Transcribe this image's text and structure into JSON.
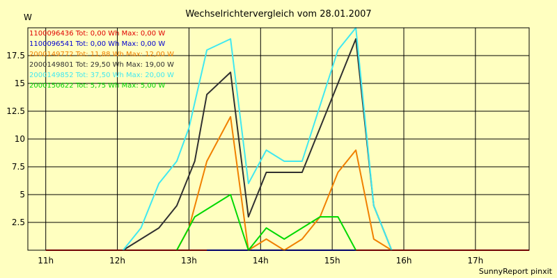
{
  "chart_data": {
    "type": "line",
    "title": "Wechselrichtervergleich vom 28.01.2007",
    "ylabel": "W",
    "xlabel": "",
    "footer": "SunnyReport pinxit",
    "xlim": [
      10.75,
      17.75
    ],
    "ylim": [
      0,
      20
    ],
    "x_ticks": [
      {
        "value": 11,
        "label": "11h"
      },
      {
        "value": 12,
        "label": "12h"
      },
      {
        "value": 13,
        "label": "13h"
      },
      {
        "value": 14,
        "label": "14h"
      },
      {
        "value": 15,
        "label": "15h"
      },
      {
        "value": 16,
        "label": "16h"
      },
      {
        "value": 17,
        "label": "17h"
      }
    ],
    "y_ticks": [
      {
        "value": 2.5,
        "label": "2.5"
      },
      {
        "value": 5,
        "label": "5"
      },
      {
        "value": 7.5,
        "label": "7.5"
      },
      {
        "value": 10,
        "label": "10"
      },
      {
        "value": 12.5,
        "label": "12.5"
      },
      {
        "value": 15,
        "label": "15"
      },
      {
        "value": 17.5,
        "label": "17.5"
      }
    ],
    "grid": true,
    "legend_placement": "top-left",
    "series": [
      {
        "name": "1100096436",
        "legend": "1100096436 Tot: 0,00 Wh Max: 0,00 W",
        "color": "#e00000",
        "points": [
          [
            11.0,
            0
          ],
          [
            17.75,
            0
          ]
        ]
      },
      {
        "name": "1100096541",
        "legend": "1100096541 Tot: 0,00 Wh Max: 0,00 W",
        "color": "#0000d0",
        "points": [
          [
            13.25,
            0
          ],
          [
            15.33,
            0
          ]
        ]
      },
      {
        "name": "2000149772",
        "legend": "2000149772 Tot: 11,88 Wh Max: 12,00 W",
        "color": "#f08000",
        "points": [
          [
            12.83,
            0
          ],
          [
            13.0,
            2
          ],
          [
            13.25,
            8
          ],
          [
            13.58,
            12
          ],
          [
            13.83,
            0
          ],
          [
            14.08,
            1
          ],
          [
            14.33,
            0
          ],
          [
            14.58,
            1
          ],
          [
            14.83,
            3
          ],
          [
            15.08,
            7
          ],
          [
            15.33,
            9
          ],
          [
            15.58,
            1
          ],
          [
            15.83,
            0
          ]
        ]
      },
      {
        "name": "2000149801",
        "legend": "2000149801 Tot: 29,50 Wh Max: 19,00 W",
        "color": "#303030",
        "points": [
          [
            12.08,
            0
          ],
          [
            12.58,
            2
          ],
          [
            12.83,
            4
          ],
          [
            13.08,
            8
          ],
          [
            13.25,
            14
          ],
          [
            13.58,
            16
          ],
          [
            13.83,
            3
          ],
          [
            14.08,
            7
          ],
          [
            14.58,
            7
          ],
          [
            15.33,
            19
          ],
          [
            15.58,
            4
          ],
          [
            15.83,
            0
          ]
        ]
      },
      {
        "name": "2000149852",
        "legend": "2000149852 Tot: 37,50 Wh Max: 20,00 W",
        "color": "#40e8f0",
        "points": [
          [
            12.08,
            0
          ],
          [
            12.33,
            2
          ],
          [
            12.58,
            6
          ],
          [
            12.83,
            8
          ],
          [
            13.0,
            11
          ],
          [
            13.25,
            18
          ],
          [
            13.58,
            19
          ],
          [
            13.83,
            6
          ],
          [
            14.08,
            9
          ],
          [
            14.33,
            8
          ],
          [
            14.58,
            8
          ],
          [
            15.08,
            18
          ],
          [
            15.33,
            20
          ],
          [
            15.58,
            4
          ],
          [
            15.83,
            0
          ]
        ]
      },
      {
        "name": "2000150622",
        "legend": "2000150622 Tot: 5,75 Wh Max: 5,00 W",
        "color": "#00d800",
        "points": [
          [
            12.83,
            0
          ],
          [
            13.08,
            3
          ],
          [
            13.58,
            5
          ],
          [
            13.83,
            0
          ],
          [
            14.08,
            2
          ],
          [
            14.33,
            1
          ],
          [
            14.83,
            3
          ],
          [
            15.08,
            3
          ],
          [
            15.33,
            0
          ]
        ]
      }
    ]
  }
}
